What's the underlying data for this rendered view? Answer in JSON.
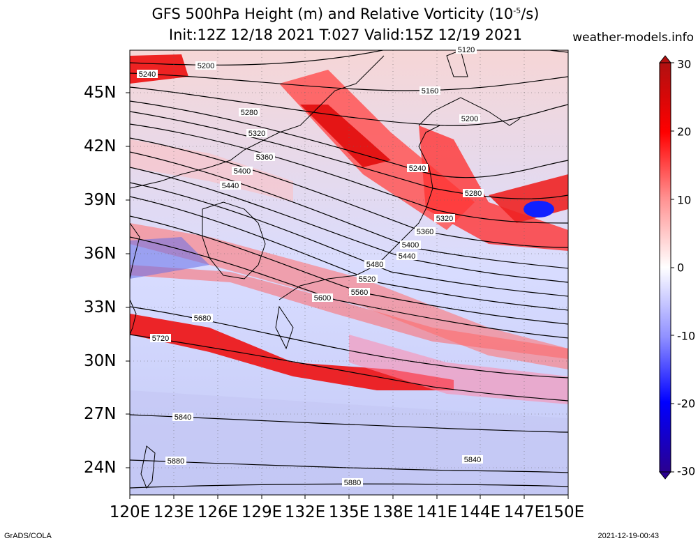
{
  "title_line1": "GFS 500hPa Height (m) and Relative Vorticity (10",
  "title_exp": "-5",
  "title_end": "/s)",
  "title_line2": "Init:12Z 12/18 2021 T:027 Valid:15Z 12/19 2021",
  "site": "weather-models.info",
  "footer_left": "GrADS/COLA",
  "footer_right": "2021-12-19-00:43",
  "lat_labels": [
    "45N",
    "42N",
    "39N",
    "36N",
    "33N",
    "30N",
    "27N",
    "24N"
  ],
  "lon_labels": [
    "120E",
    "123E",
    "126E",
    "129E",
    "132E",
    "135E",
    "138E",
    "141E",
    "144E",
    "147E",
    "150E"
  ],
  "colorbar_labels": [
    "30",
    "20",
    "10",
    "0",
    "-10",
    "-20",
    "-30"
  ],
  "colorbar_colors": [
    "#b01010",
    "#ff0000",
    "#ff9090",
    "#ffffff",
    "#9090ff",
    "#0000ff",
    "#2a0090"
  ],
  "contours": [
    "5120",
    "5160",
    "5200",
    "5240",
    "5280",
    "5320",
    "5360",
    "5400",
    "5440",
    "5480",
    "5520",
    "5560",
    "5600",
    "5680",
    "5720",
    "5840",
    "5880"
  ],
  "contour_labels": [
    {
      "text": "5120"
    },
    {
      "text": "5240"
    },
    {
      "text": "5200"
    },
    {
      "text": "5160"
    },
    {
      "text": "5280"
    },
    {
      "text": "5200"
    },
    {
      "text": "5320"
    },
    {
      "text": "5360"
    },
    {
      "text": "5240"
    },
    {
      "text": "5400"
    },
    {
      "text": "5440"
    },
    {
      "text": "5280"
    },
    {
      "text": "5320"
    },
    {
      "text": "5360"
    },
    {
      "text": "5400"
    },
    {
      "text": "5440"
    },
    {
      "text": "5480"
    },
    {
      "text": "5520"
    },
    {
      "text": "5560"
    },
    {
      "text": "5600"
    },
    {
      "text": "5680"
    },
    {
      "text": "5720"
    },
    {
      "text": "5840"
    },
    {
      "text": "5880"
    },
    {
      "text": "5840"
    },
    {
      "text": "5880"
    }
  ]
}
